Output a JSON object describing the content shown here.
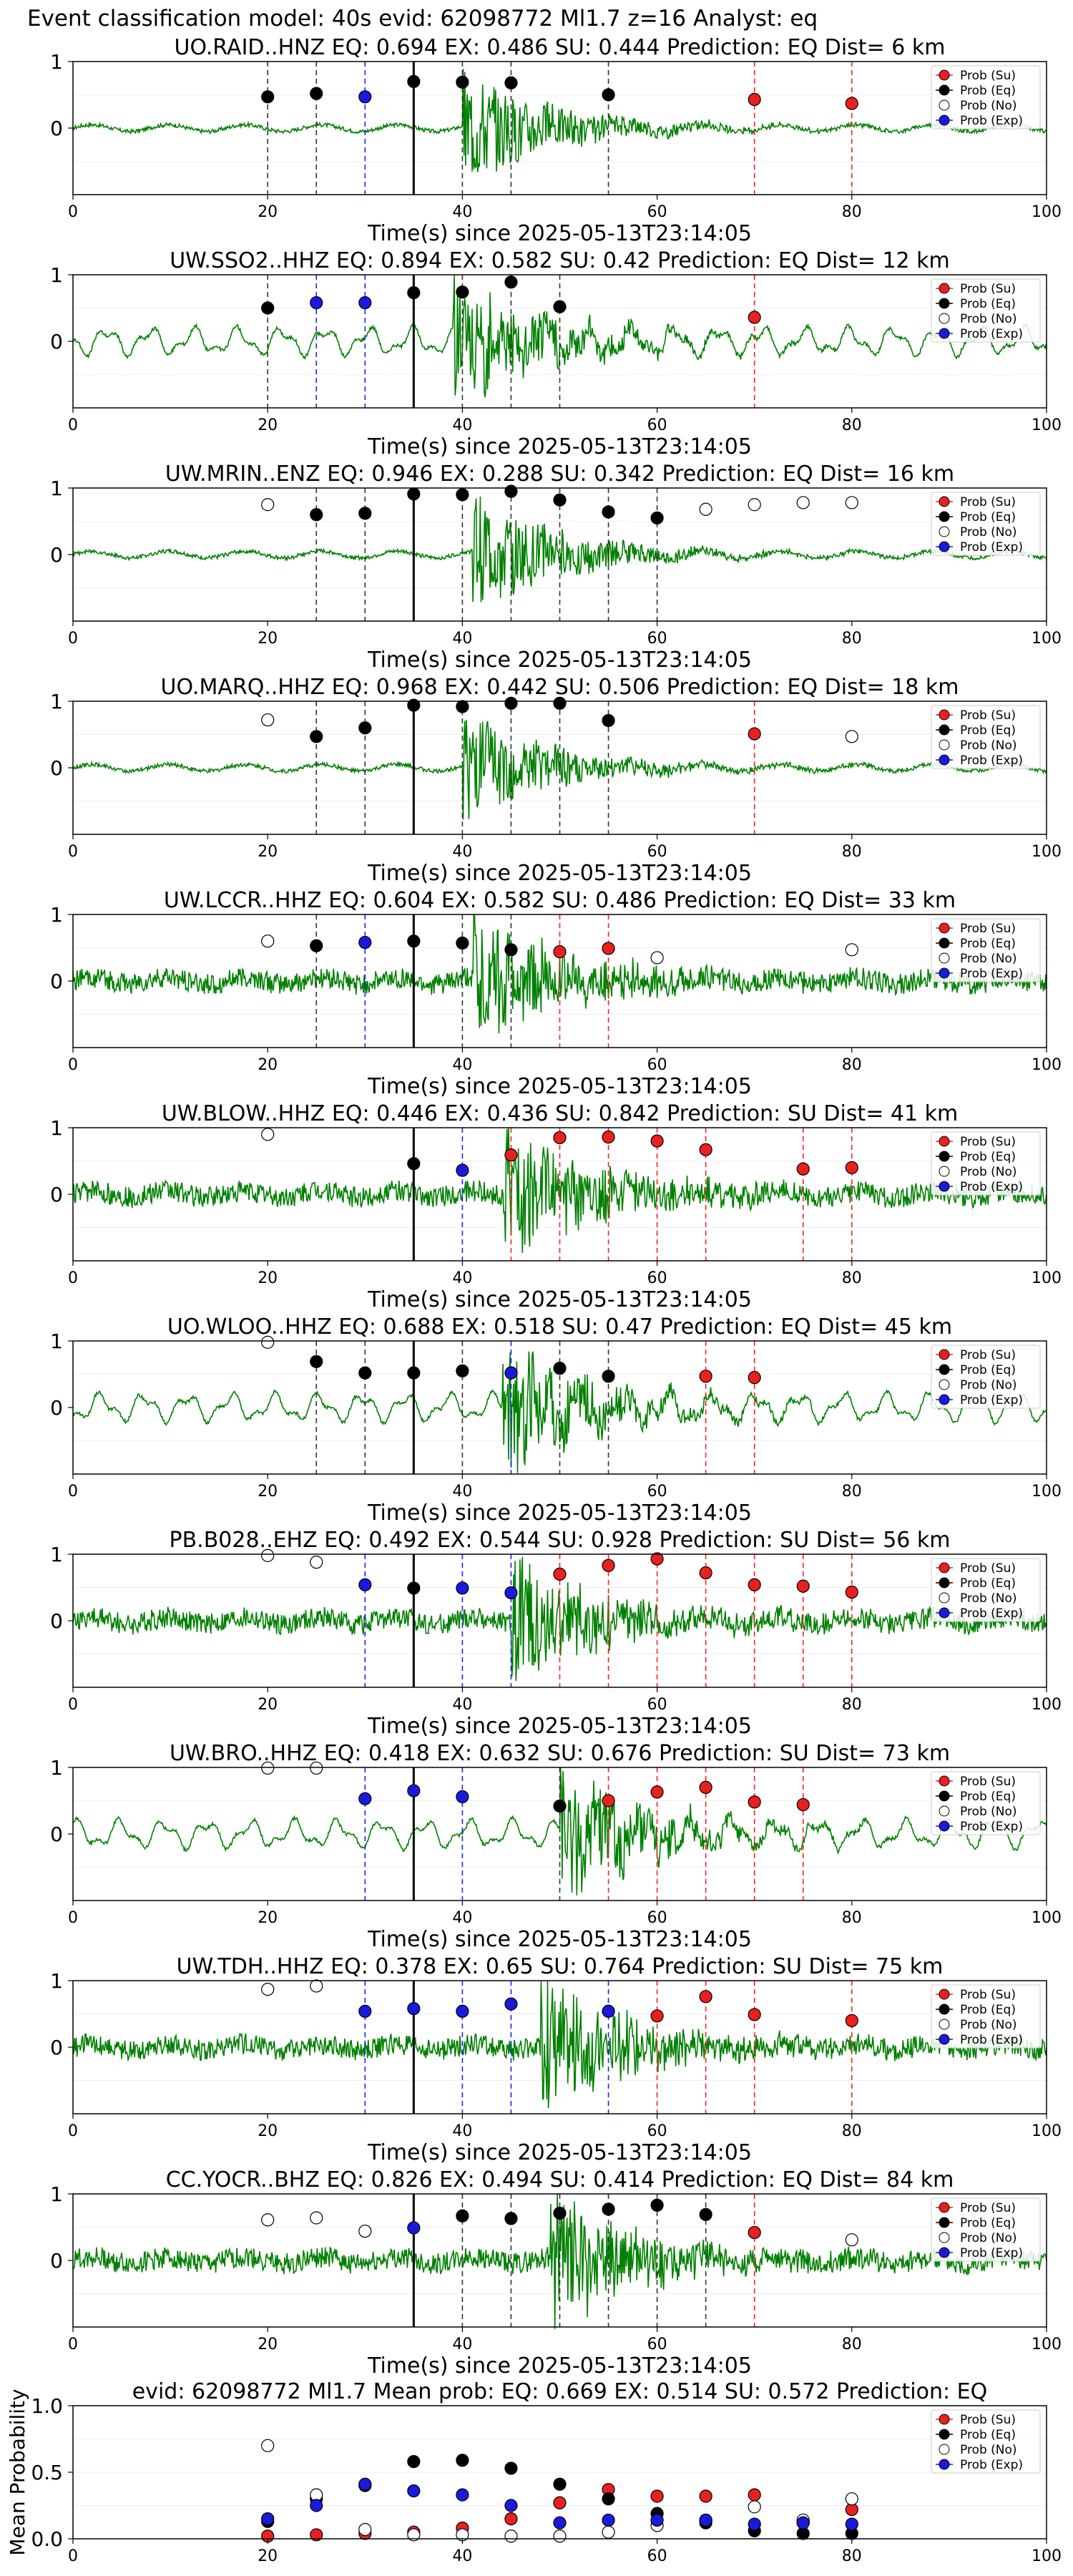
{
  "figure": {
    "title": "Event classification model: 40s evid: 62098772 Ml1.7 z=16 Analyst: eq"
  },
  "legend": {
    "su": "Prob (Su)",
    "eq": "Prob (Eq)",
    "no": "Prob (No)",
    "exp": "Prob (Exp)"
  },
  "colors": {
    "su": "#e8211f",
    "eq": "#000000",
    "no": "#ffffff",
    "exp": "#1a1adb",
    "wave": "#008000"
  },
  "chart_data": [
    {
      "type": "line",
      "title": "UO.RAID..HNZ   EQ: 0.694  EX: 0.486  SU: 0.444   Prediction: EQ    Dist= 6 km",
      "xlabel": "Time(s) since 2025-05-13T23:14:05",
      "xlim": [
        0,
        100
      ],
      "ylim": [
        -1,
        1
      ],
      "xticks": [
        0,
        20,
        40,
        60,
        80,
        100
      ],
      "yticks": [
        0,
        1
      ],
      "arrival_s": 35,
      "waveform": {
        "amplitude": "small",
        "onset_s": 40
      },
      "markers": [
        {
          "x": 20,
          "p": 0.47,
          "class": "eq"
        },
        {
          "x": 25,
          "p": 0.52,
          "class": "eq"
        },
        {
          "x": 30,
          "p": 0.47,
          "class": "exp"
        },
        {
          "x": 35,
          "p": 0.7,
          "class": "eq"
        },
        {
          "x": 40,
          "p": 0.69,
          "class": "eq"
        },
        {
          "x": 45,
          "p": 0.68,
          "class": "eq"
        },
        {
          "x": 55,
          "p": 0.5,
          "class": "eq"
        },
        {
          "x": 70,
          "p": 0.43,
          "class": "su"
        },
        {
          "x": 80,
          "p": 0.37,
          "class": "su"
        }
      ]
    },
    {
      "type": "line",
      "title": "UW.SSO2..HHZ   EQ: 0.894  EX: 0.582  SU: 0.42   Prediction: EQ    Dist= 12 km",
      "xlabel": "Time(s) since 2025-05-13T23:14:05",
      "xlim": [
        0,
        100
      ],
      "ylim": [
        -1,
        1
      ],
      "xticks": [
        0,
        20,
        40,
        60,
        80,
        100
      ],
      "yticks": [
        0,
        1
      ],
      "arrival_s": 35,
      "waveform": {
        "amplitude": "low-frequency",
        "onset_s": 39
      },
      "markers": [
        {
          "x": 20,
          "p": 0.5,
          "class": "eq"
        },
        {
          "x": 25,
          "p": 0.58,
          "class": "exp"
        },
        {
          "x": 30,
          "p": 0.58,
          "class": "exp"
        },
        {
          "x": 35,
          "p": 0.73,
          "class": "eq"
        },
        {
          "x": 40,
          "p": 0.74,
          "class": "eq"
        },
        {
          "x": 45,
          "p": 0.89,
          "class": "eq"
        },
        {
          "x": 50,
          "p": 0.52,
          "class": "eq"
        },
        {
          "x": 70,
          "p": 0.36,
          "class": "su"
        }
      ]
    },
    {
      "type": "line",
      "title": "UW.MRIN..ENZ   EQ: 0.946  EX: 0.288  SU: 0.342   Prediction: EQ    Dist= 16 km",
      "xlabel": "Time(s) since 2025-05-13T23:14:05",
      "xlim": [
        0,
        100
      ],
      "ylim": [
        -1,
        1
      ],
      "xticks": [
        0,
        20,
        40,
        60,
        80,
        100
      ],
      "yticks": [
        0,
        1
      ],
      "arrival_s": 35,
      "waveform": {
        "amplitude": "small",
        "onset_s": 41
      },
      "markers": [
        {
          "x": 20,
          "p": 0.75,
          "class": "no"
        },
        {
          "x": 25,
          "p": 0.6,
          "class": "eq"
        },
        {
          "x": 30,
          "p": 0.62,
          "class": "eq"
        },
        {
          "x": 35,
          "p": 0.91,
          "class": "eq"
        },
        {
          "x": 40,
          "p": 0.9,
          "class": "eq"
        },
        {
          "x": 45,
          "p": 0.95,
          "class": "eq"
        },
        {
          "x": 50,
          "p": 0.82,
          "class": "eq"
        },
        {
          "x": 55,
          "p": 0.64,
          "class": "eq"
        },
        {
          "x": 60,
          "p": 0.55,
          "class": "eq"
        },
        {
          "x": 65,
          "p": 0.68,
          "class": "no"
        },
        {
          "x": 70,
          "p": 0.75,
          "class": "no"
        },
        {
          "x": 75,
          "p": 0.78,
          "class": "no"
        },
        {
          "x": 80,
          "p": 0.78,
          "class": "no"
        }
      ]
    },
    {
      "type": "line",
      "title": "UO.MARQ..HHZ   EQ: 0.968  EX: 0.442  SU: 0.506   Prediction: EQ    Dist= 18 km",
      "xlabel": "Time(s) since 2025-05-13T23:14:05",
      "xlim": [
        0,
        100
      ],
      "ylim": [
        -1,
        1
      ],
      "xticks": [
        0,
        20,
        40,
        60,
        80,
        100
      ],
      "yticks": [
        0,
        1
      ],
      "arrival_s": 35,
      "waveform": {
        "amplitude": "small",
        "onset_s": 40
      },
      "markers": [
        {
          "x": 20,
          "p": 0.72,
          "class": "no"
        },
        {
          "x": 25,
          "p": 0.47,
          "class": "eq"
        },
        {
          "x": 30,
          "p": 0.6,
          "class": "eq"
        },
        {
          "x": 35,
          "p": 0.94,
          "class": "eq"
        },
        {
          "x": 40,
          "p": 0.92,
          "class": "eq"
        },
        {
          "x": 45,
          "p": 0.97,
          "class": "eq"
        },
        {
          "x": 50,
          "p": 0.97,
          "class": "eq"
        },
        {
          "x": 55,
          "p": 0.71,
          "class": "eq"
        },
        {
          "x": 70,
          "p": 0.51,
          "class": "su"
        },
        {
          "x": 80,
          "p": 0.47,
          "class": "no"
        }
      ]
    },
    {
      "type": "line",
      "title": "UW.LCCR..HHZ   EQ: 0.604  EX: 0.582  SU: 0.486   Prediction: EQ    Dist= 33 km",
      "xlabel": "Time(s) since 2025-05-13T23:14:05",
      "xlim": [
        0,
        100
      ],
      "ylim": [
        -1,
        1
      ],
      "xticks": [
        0,
        20,
        40,
        60,
        80,
        100
      ],
      "yticks": [
        0,
        1
      ],
      "arrival_s": 35,
      "waveform": {
        "amplitude": "noisy",
        "onset_s": 41
      },
      "markers": [
        {
          "x": 20,
          "p": 0.6,
          "class": "no"
        },
        {
          "x": 25,
          "p": 0.53,
          "class": "eq"
        },
        {
          "x": 30,
          "p": 0.58,
          "class": "exp"
        },
        {
          "x": 35,
          "p": 0.6,
          "class": "eq"
        },
        {
          "x": 40,
          "p": 0.57,
          "class": "eq"
        },
        {
          "x": 45,
          "p": 0.47,
          "class": "eq"
        },
        {
          "x": 50,
          "p": 0.44,
          "class": "su"
        },
        {
          "x": 55,
          "p": 0.49,
          "class": "su"
        },
        {
          "x": 60,
          "p": 0.35,
          "class": "no"
        },
        {
          "x": 80,
          "p": 0.47,
          "class": "no"
        }
      ]
    },
    {
      "type": "line",
      "title": "UW.BLOW..HHZ   EQ: 0.446  EX: 0.436  SU: 0.842   Prediction: SU    Dist= 41 km",
      "xlabel": "Time(s) since 2025-05-13T23:14:05",
      "xlim": [
        0,
        100
      ],
      "ylim": [
        -1,
        1
      ],
      "xticks": [
        0,
        20,
        40,
        60,
        80,
        100
      ],
      "yticks": [
        0,
        1
      ],
      "arrival_s": 35,
      "waveform": {
        "amplitude": "noisy",
        "onset_s": 44
      },
      "markers": [
        {
          "x": 20,
          "p": 0.9,
          "class": "no"
        },
        {
          "x": 35,
          "p": 0.46,
          "class": "eq"
        },
        {
          "x": 40,
          "p": 0.36,
          "class": "exp"
        },
        {
          "x": 45,
          "p": 0.59,
          "class": "su"
        },
        {
          "x": 50,
          "p": 0.85,
          "class": "su"
        },
        {
          "x": 55,
          "p": 0.86,
          "class": "su"
        },
        {
          "x": 60,
          "p": 0.8,
          "class": "su"
        },
        {
          "x": 65,
          "p": 0.67,
          "class": "su"
        },
        {
          "x": 75,
          "p": 0.38,
          "class": "su"
        },
        {
          "x": 80,
          "p": 0.4,
          "class": "su"
        }
      ]
    },
    {
      "type": "line",
      "title": "UO.WLOO..HHZ   EQ: 0.688  EX: 0.518  SU: 0.47   Prediction: EQ    Dist= 45 km",
      "xlabel": "Time(s) since 2025-05-13T23:14:05",
      "xlim": [
        0,
        100
      ],
      "ylim": [
        -1,
        1
      ],
      "xticks": [
        0,
        20,
        40,
        60,
        80,
        100
      ],
      "yticks": [
        0,
        1
      ],
      "arrival_s": 35,
      "waveform": {
        "amplitude": "low-frequency",
        "onset_s": 44
      },
      "markers": [
        {
          "x": 20,
          "p": 0.98,
          "class": "no"
        },
        {
          "x": 25,
          "p": 0.69,
          "class": "eq"
        },
        {
          "x": 30,
          "p": 0.52,
          "class": "eq"
        },
        {
          "x": 35,
          "p": 0.52,
          "class": "eq"
        },
        {
          "x": 40,
          "p": 0.55,
          "class": "eq"
        },
        {
          "x": 45,
          "p": 0.52,
          "class": "exp"
        },
        {
          "x": 50,
          "p": 0.59,
          "class": "eq"
        },
        {
          "x": 55,
          "p": 0.47,
          "class": "eq"
        },
        {
          "x": 65,
          "p": 0.47,
          "class": "su"
        },
        {
          "x": 70,
          "p": 0.45,
          "class": "su"
        }
      ]
    },
    {
      "type": "line",
      "title": "PB.B028..EHZ   EQ: 0.492  EX: 0.544  SU: 0.928   Prediction: SU    Dist= 56 km",
      "xlabel": "Time(s) since 2025-05-13T23:14:05",
      "xlim": [
        0,
        100
      ],
      "ylim": [
        -1,
        1
      ],
      "xticks": [
        0,
        20,
        40,
        60,
        80,
        100
      ],
      "yticks": [
        0,
        1
      ],
      "arrival_s": 35,
      "waveform": {
        "amplitude": "noisy",
        "onset_s": 45
      },
      "markers": [
        {
          "x": 20,
          "p": 0.98,
          "class": "no"
        },
        {
          "x": 25,
          "p": 0.88,
          "class": "no"
        },
        {
          "x": 30,
          "p": 0.54,
          "class": "exp"
        },
        {
          "x": 35,
          "p": 0.49,
          "class": "eq"
        },
        {
          "x": 40,
          "p": 0.49,
          "class": "exp"
        },
        {
          "x": 45,
          "p": 0.42,
          "class": "exp"
        },
        {
          "x": 50,
          "p": 0.7,
          "class": "su"
        },
        {
          "x": 55,
          "p": 0.83,
          "class": "su"
        },
        {
          "x": 60,
          "p": 0.93,
          "class": "su"
        },
        {
          "x": 65,
          "p": 0.72,
          "class": "su"
        },
        {
          "x": 70,
          "p": 0.54,
          "class": "su"
        },
        {
          "x": 75,
          "p": 0.52,
          "class": "su"
        },
        {
          "x": 80,
          "p": 0.43,
          "class": "su"
        }
      ]
    },
    {
      "type": "line",
      "title": "UW.BRO..HHZ   EQ: 0.418  EX: 0.632  SU: 0.676   Prediction: SU    Dist= 73 km",
      "xlabel": "Time(s) since 2025-05-13T23:14:05",
      "xlim": [
        0,
        100
      ],
      "ylim": [
        -1,
        1
      ],
      "xticks": [
        0,
        20,
        40,
        60,
        80,
        100
      ],
      "yticks": [
        0,
        1
      ],
      "arrival_s": 35,
      "waveform": {
        "amplitude": "low-frequency",
        "onset_s": 50
      },
      "markers": [
        {
          "x": 20,
          "p": 0.99,
          "class": "no"
        },
        {
          "x": 25,
          "p": 0.99,
          "class": "no"
        },
        {
          "x": 30,
          "p": 0.53,
          "class": "exp"
        },
        {
          "x": 35,
          "p": 0.65,
          "class": "exp"
        },
        {
          "x": 40,
          "p": 0.56,
          "class": "exp"
        },
        {
          "x": 50,
          "p": 0.42,
          "class": "eq"
        },
        {
          "x": 55,
          "p": 0.5,
          "class": "su"
        },
        {
          "x": 60,
          "p": 0.63,
          "class": "su"
        },
        {
          "x": 65,
          "p": 0.7,
          "class": "su"
        },
        {
          "x": 70,
          "p": 0.48,
          "class": "su"
        },
        {
          "x": 75,
          "p": 0.44,
          "class": "su"
        }
      ]
    },
    {
      "type": "line",
      "title": "UW.TDH..HHZ   EQ: 0.378  EX: 0.65  SU: 0.764   Prediction: SU    Dist= 75 km",
      "xlabel": "Time(s) since 2025-05-13T23:14:05",
      "xlim": [
        0,
        100
      ],
      "ylim": [
        -1,
        1
      ],
      "xticks": [
        0,
        20,
        40,
        60,
        80,
        100
      ],
      "yticks": [
        0,
        1
      ],
      "arrival_s": 35,
      "waveform": {
        "amplitude": "noisy",
        "onset_s": 48
      },
      "markers": [
        {
          "x": 20,
          "p": 0.87,
          "class": "no"
        },
        {
          "x": 25,
          "p": 0.92,
          "class": "no"
        },
        {
          "x": 30,
          "p": 0.54,
          "class": "exp"
        },
        {
          "x": 35,
          "p": 0.58,
          "class": "exp"
        },
        {
          "x": 40,
          "p": 0.54,
          "class": "exp"
        },
        {
          "x": 45,
          "p": 0.65,
          "class": "exp"
        },
        {
          "x": 55,
          "p": 0.54,
          "class": "exp"
        },
        {
          "x": 60,
          "p": 0.47,
          "class": "su"
        },
        {
          "x": 65,
          "p": 0.76,
          "class": "su"
        },
        {
          "x": 70,
          "p": 0.49,
          "class": "su"
        },
        {
          "x": 80,
          "p": 0.4,
          "class": "su"
        }
      ]
    },
    {
      "type": "line",
      "title": "CC.YOCR..BHZ   EQ: 0.826  EX: 0.494  SU: 0.414   Prediction: EQ    Dist= 84 km",
      "xlabel": "Time(s) since 2025-05-13T23:14:05",
      "xlim": [
        0,
        100
      ],
      "ylim": [
        -1,
        1
      ],
      "xticks": [
        0,
        20,
        40,
        60,
        80,
        100
      ],
      "yticks": [
        0,
        1
      ],
      "arrival_s": 35,
      "waveform": {
        "amplitude": "noisy",
        "onset_s": 49
      },
      "markers": [
        {
          "x": 20,
          "p": 0.61,
          "class": "no"
        },
        {
          "x": 25,
          "p": 0.64,
          "class": "no"
        },
        {
          "x": 30,
          "p": 0.44,
          "class": "no"
        },
        {
          "x": 35,
          "p": 0.49,
          "class": "exp"
        },
        {
          "x": 40,
          "p": 0.67,
          "class": "eq"
        },
        {
          "x": 45,
          "p": 0.63,
          "class": "eq"
        },
        {
          "x": 50,
          "p": 0.71,
          "class": "eq"
        },
        {
          "x": 55,
          "p": 0.77,
          "class": "eq"
        },
        {
          "x": 60,
          "p": 0.83,
          "class": "eq"
        },
        {
          "x": 65,
          "p": 0.69,
          "class": "eq"
        },
        {
          "x": 70,
          "p": 0.42,
          "class": "su"
        },
        {
          "x": 80,
          "p": 0.31,
          "class": "no"
        }
      ]
    },
    {
      "type": "scatter",
      "title": "evid: 62098772  Ml1.7   Mean prob:   EQ: 0.669  EX: 0.514  SU: 0.572   Prediction: EQ",
      "ylabel": "Mean Probability",
      "xlim": [
        0,
        100
      ],
      "ylim": [
        0,
        1
      ],
      "xticks": [
        0,
        20,
        40,
        60,
        80,
        100
      ],
      "yticks": [
        0.0,
        0.5,
        1.0
      ],
      "ytick_labels": [
        "0.0",
        "0.5",
        "1.0"
      ],
      "x": [
        20,
        25,
        30,
        35,
        40,
        45,
        50,
        55,
        60,
        65,
        70,
        75,
        80
      ],
      "series": [
        {
          "key": "su",
          "values": [
            0.02,
            0.03,
            0.04,
            0.05,
            0.08,
            0.15,
            0.27,
            0.37,
            0.32,
            0.32,
            0.33,
            0.12,
            0.22
          ]
        },
        {
          "key": "eq",
          "values": [
            0.13,
            0.3,
            0.4,
            0.58,
            0.59,
            0.53,
            0.41,
            0.3,
            0.19,
            0.12,
            0.06,
            0.04,
            0.04
          ]
        },
        {
          "key": "no",
          "values": [
            0.7,
            0.33,
            0.07,
            0.03,
            0.03,
            0.02,
            0.02,
            0.05,
            0.1,
            0.14,
            0.24,
            0.14,
            0.3
          ]
        },
        {
          "key": "exp",
          "values": [
            0.15,
            0.25,
            0.41,
            0.36,
            0.33,
            0.25,
            0.12,
            0.14,
            0.14,
            0.14,
            0.11,
            0.12,
            0.11
          ]
        }
      ]
    }
  ]
}
